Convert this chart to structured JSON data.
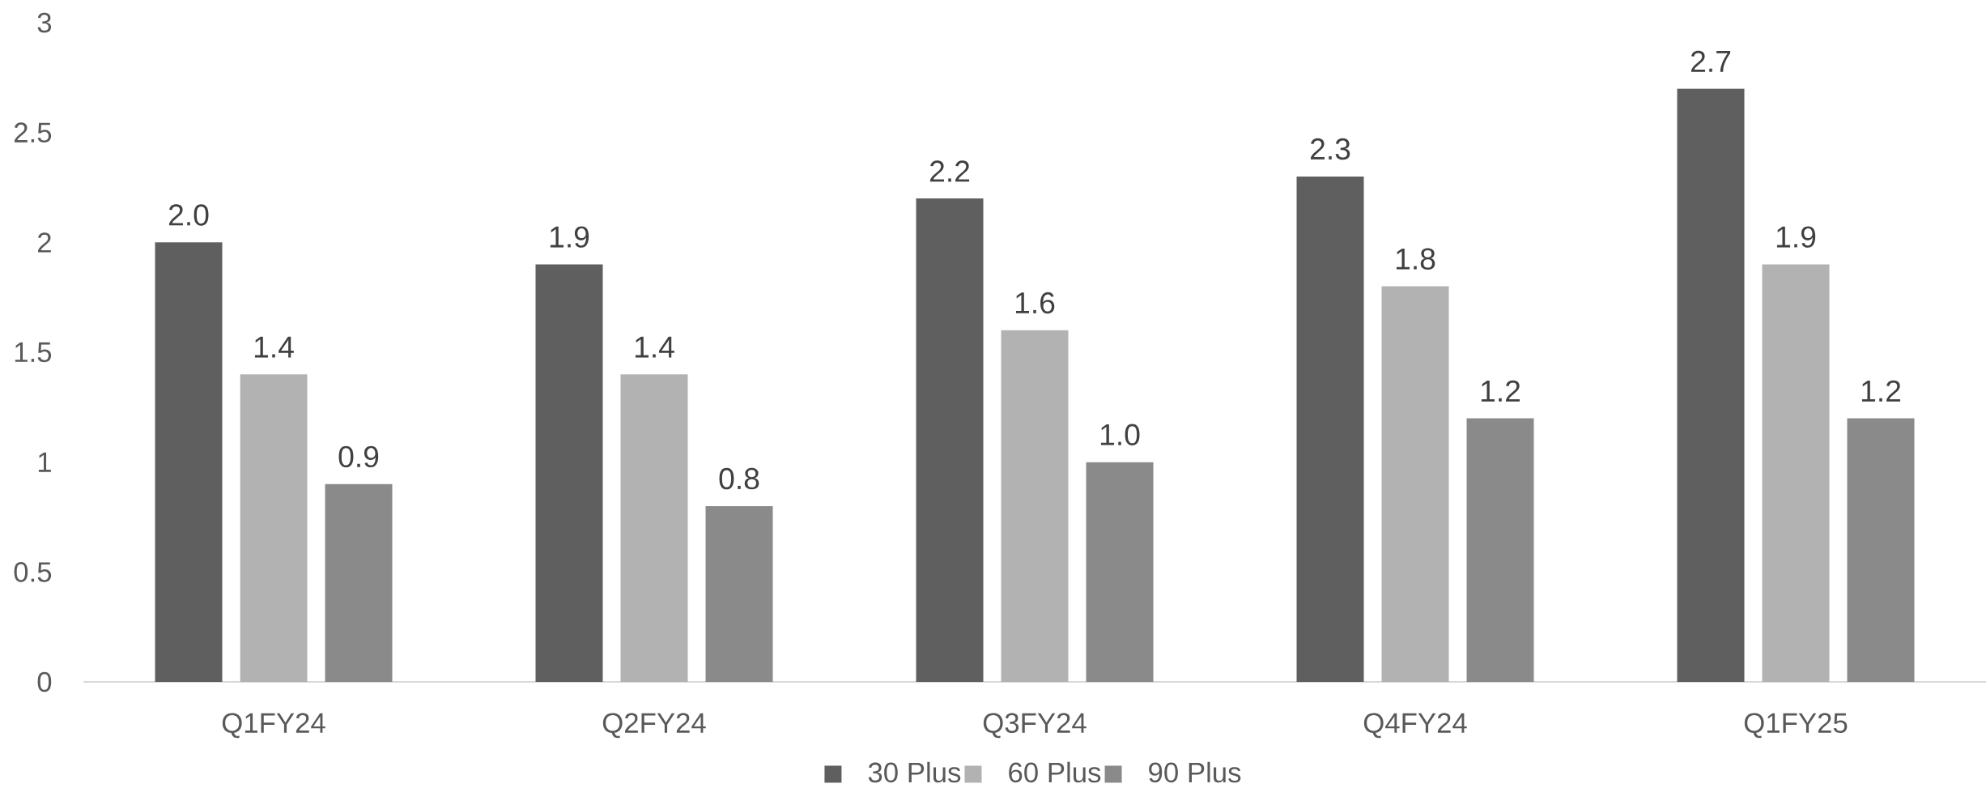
{
  "chart_data": {
    "type": "bar",
    "categories": [
      "Q1FY24",
      "Q2FY24",
      "Q3FY24",
      "Q4FY24",
      "Q1FY25"
    ],
    "series": [
      {
        "name": "30 Plus",
        "color": "#5f5f5f",
        "values": [
          2.0,
          1.9,
          2.2,
          2.3,
          2.7
        ],
        "value_labels": [
          "2.0",
          "1.9",
          "2.2",
          "2.3",
          "2.7"
        ]
      },
      {
        "name": "60 Plus",
        "color": "#b2b2b2",
        "values": [
          1.4,
          1.4,
          1.6,
          1.8,
          1.9
        ],
        "value_labels": [
          "1.4",
          "1.4",
          "1.6",
          "1.8",
          "1.9"
        ]
      },
      {
        "name": "90 Plus",
        "color": "#8a8a8a",
        "values": [
          0.9,
          0.8,
          1.0,
          1.2,
          1.2
        ],
        "value_labels": [
          "0.9",
          "0.8",
          "1.0",
          "1.2",
          "1.2"
        ]
      }
    ],
    "ylim": [
      0,
      3
    ],
    "yticks": [
      0,
      0.5,
      1,
      1.5,
      2,
      2.5,
      3
    ],
    "legend": "bottom"
  }
}
